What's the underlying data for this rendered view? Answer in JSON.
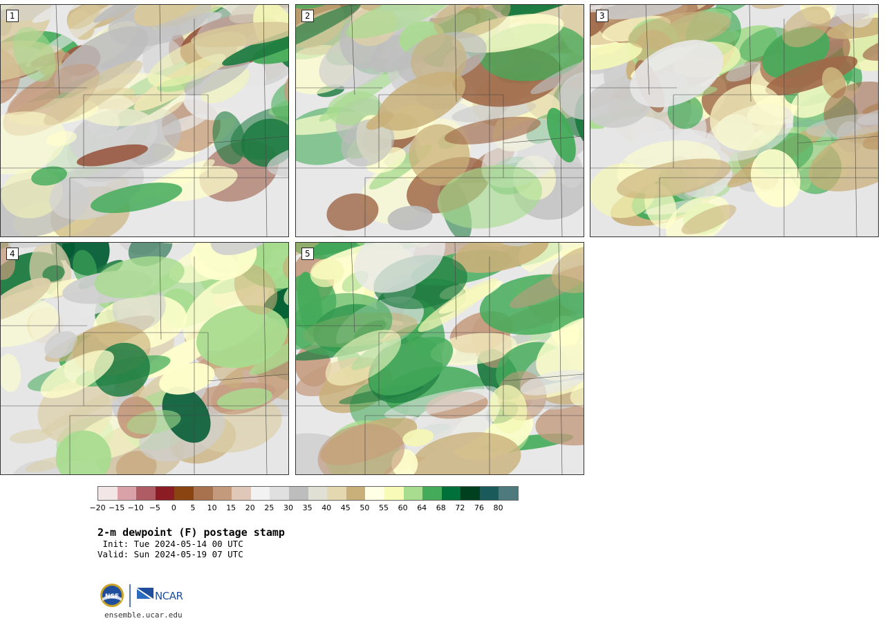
{
  "panels": [
    {
      "label": "1",
      "palette": [
        "#e8e8e8",
        "#d2d2d2",
        "#bdbdbd",
        "#c9b07a",
        "#d8c89a",
        "#ffffcc",
        "#f4f7b5",
        "#a8dc8f",
        "#44ab5a",
        "#1b7a3f",
        "#9a5a43",
        "#c49a7d"
      ]
    },
    {
      "label": "2",
      "palette": [
        "#e8e8e8",
        "#cfcfcf",
        "#bdbdbd",
        "#c9b07a",
        "#dccfa8",
        "#ffffcc",
        "#a8dc8f",
        "#44ab5a",
        "#1b7a3f",
        "#a06a4a"
      ]
    },
    {
      "label": "3",
      "palette": [
        "#e6e6e6",
        "#cccccc",
        "#c9b07a",
        "#ffffcc",
        "#f4f7b5",
        "#a8dc8f",
        "#44ab5a",
        "#a06a4a"
      ]
    },
    {
      "label": "4",
      "palette": [
        "#e6e6e6",
        "#cfcfcf",
        "#c9b07a",
        "#dccfa8",
        "#ffffcc",
        "#a8dc8f",
        "#44ab5a",
        "#1b7a3f",
        "#005a32",
        "#c49a7d"
      ]
    },
    {
      "label": "5",
      "palette": [
        "#e8e8e8",
        "#cfcfcf",
        "#c9b07a",
        "#ffffcc",
        "#f4f7b5",
        "#a8dc8f",
        "#44ab5a",
        "#1b7a3f",
        "#c49a7d"
      ]
    }
  ],
  "colorbar": {
    "colors": [
      "#f2e6e6",
      "#d8a2a8",
      "#b05c64",
      "#8c1c24",
      "#8a4412",
      "#a8724e",
      "#c49a7d",
      "#e0c8b8",
      "#f2f2f2",
      "#e0e0e0",
      "#bdbdbd",
      "#e0e0d4",
      "#e4d8b0",
      "#c9b07a",
      "#ffffe6",
      "#f8fbb8",
      "#a8dc8f",
      "#44ab5a",
      "#00703a",
      "#00401f",
      "#1a5a5a",
      "#4e7a7e"
    ],
    "ticks": [
      "−20",
      "−15",
      "−10",
      "−5",
      "0",
      "5",
      "10",
      "15",
      "20",
      "25",
      "30",
      "35",
      "40",
      "45",
      "50",
      "55",
      "60",
      "64",
      "68",
      "72",
      "76",
      "80"
    ]
  },
  "title": "2-m dewpoint (F) postage stamp",
  "init": " Init: Tue 2024-05-14 00 UTC",
  "valid": "Valid: Sun 2024-05-19 07 UTC",
  "logos": {
    "nsf": "NSF",
    "ncar": "NCAR"
  },
  "site": "ensemble.ucar.edu"
}
